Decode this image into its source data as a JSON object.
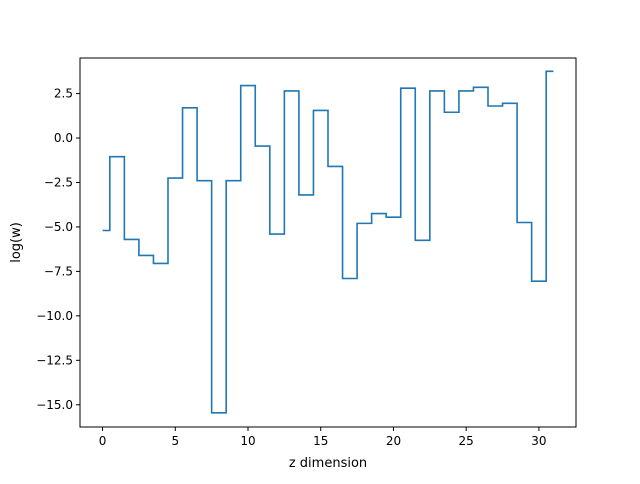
{
  "chart_data": {
    "type": "line",
    "style": "step",
    "title": "",
    "xlabel": "z dimension",
    "ylabel": "log(w)",
    "xlim": [
      -1.55,
      32.55
    ],
    "ylim": [
      -16.25,
      4.5
    ],
    "x_ticks": [
      0,
      5,
      10,
      15,
      20,
      25,
      30
    ],
    "y_ticks": [
      2.5,
      0.0,
      -2.5,
      -5.0,
      -7.5,
      -10.0,
      -12.5,
      -15.0
    ],
    "y_tick_labels": [
      "2.5",
      "0.0",
      "−2.5",
      "−5.0",
      "−7.5",
      "−10.0",
      "−12.5",
      "−15.0"
    ],
    "grid": false,
    "legend": "none",
    "line_color": "#1f77b4",
    "x": [
      0,
      1,
      2,
      3,
      4,
      5,
      6,
      7,
      8,
      9,
      10,
      11,
      12,
      13,
      14,
      15,
      16,
      17,
      18,
      19,
      20,
      21,
      22,
      23,
      24,
      25,
      26,
      27,
      28,
      29,
      30,
      31
    ],
    "values": [
      -5.2,
      -1.05,
      -5.7,
      -6.6,
      -7.05,
      -2.25,
      1.7,
      -2.4,
      -15.45,
      -2.4,
      2.95,
      -0.45,
      -5.4,
      2.65,
      -3.2,
      1.55,
      -1.6,
      -7.9,
      -4.8,
      -4.25,
      -4.45,
      2.8,
      -5.75,
      2.65,
      1.45,
      2.65,
      2.85,
      1.8,
      1.95,
      -4.75,
      -8.05,
      3.75
    ]
  }
}
